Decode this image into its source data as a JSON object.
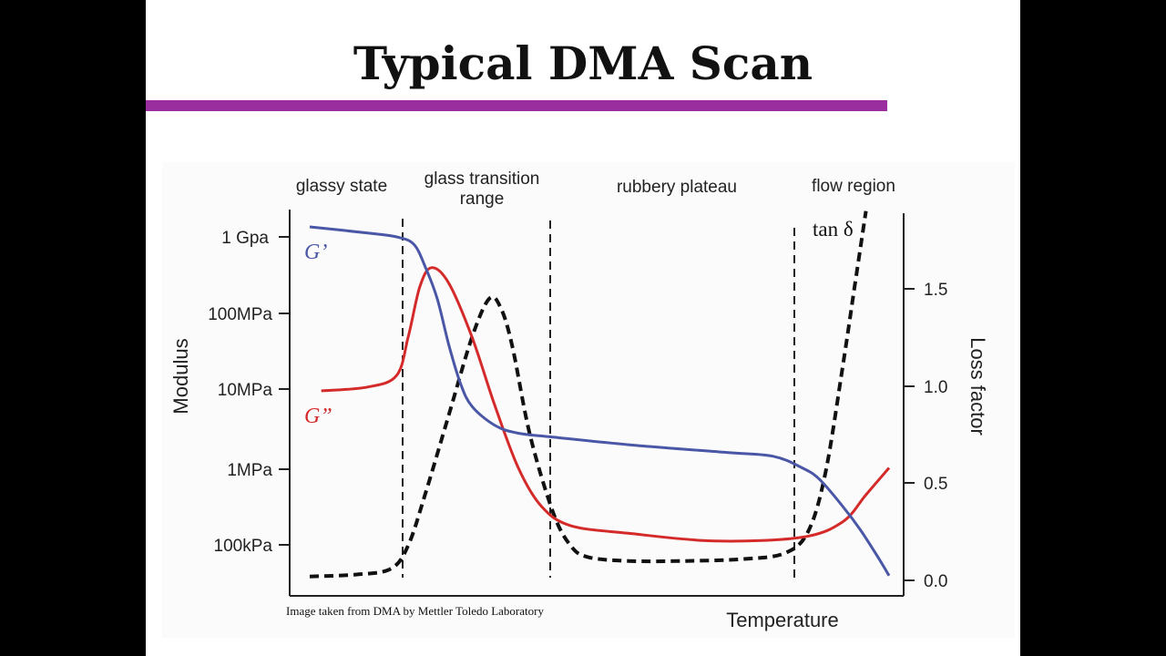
{
  "slide": {
    "title": "Typical DMA Scan",
    "accent_color": "#9b2e9f"
  },
  "chart_data": {
    "type": "line",
    "xlabel": "Temperature",
    "ylabel_left": "Modulus",
    "ylabel_right": "Loss factor",
    "x_ticks_shown": false,
    "left_axis": {
      "scale": "log",
      "ticks": [
        "1 Gpa",
        "100MPa",
        "10MPa",
        "1MPa",
        "100kPa"
      ]
    },
    "right_axis": {
      "scale": "linear",
      "ylim": [
        0.0,
        1.9
      ],
      "ticks": [
        "0.0",
        "0.5",
        "1.0",
        "1.5"
      ]
    },
    "regions": [
      "glassy state",
      "glass  transition range",
      "rubbery plateau",
      "flow region"
    ],
    "series": [
      {
        "name": "G’",
        "axis": "left",
        "color": "#4a56a6",
        "style": "solid",
        "x": [
          0,
          10,
          15,
          18,
          20,
          22,
          24,
          26,
          28,
          32,
          36,
          42,
          55,
          72,
          80,
          85,
          88,
          92,
          95,
          98,
          100
        ],
        "y_log10_pa": [
          9.13,
          9.05,
          9.0,
          8.9,
          8.6,
          8.2,
          7.6,
          7.1,
          6.8,
          6.55,
          6.45,
          6.4,
          6.3,
          6.2,
          6.15,
          6.0,
          5.85,
          5.5,
          5.2,
          4.85,
          4.6
        ]
      },
      {
        "name": "G”",
        "axis": "left",
        "color": "#d42a2a",
        "style": "solid",
        "x": [
          2,
          10,
          15,
          17,
          19,
          21,
          24,
          28,
          32,
          36,
          40,
          45,
          55,
          70,
          85,
          92,
          96,
          100
        ],
        "y_log10_pa": [
          7.0,
          7.05,
          7.2,
          7.7,
          8.35,
          8.6,
          8.4,
          7.7,
          6.8,
          6.0,
          5.5,
          5.25,
          5.15,
          5.05,
          5.1,
          5.3,
          5.65,
          6.0
        ]
      },
      {
        "name": "tan δ",
        "axis": "right",
        "color": "#111111",
        "style": "dashed",
        "x": [
          0,
          8,
          14,
          17,
          20,
          24,
          28,
          31,
          33,
          35,
          38,
          42,
          45,
          48,
          55,
          65,
          75,
          82,
          86,
          89,
          92,
          94,
          96
        ],
        "y": [
          0.02,
          0.03,
          0.06,
          0.18,
          0.45,
          0.85,
          1.25,
          1.45,
          1.4,
          1.2,
          0.75,
          0.35,
          0.18,
          0.12,
          0.1,
          0.1,
          0.11,
          0.14,
          0.25,
          0.55,
          1.1,
          1.5,
          1.9
        ]
      }
    ],
    "annotation": "tan δ",
    "credit": "Image taken from DMA by Mettler Toledo Laboratory"
  }
}
